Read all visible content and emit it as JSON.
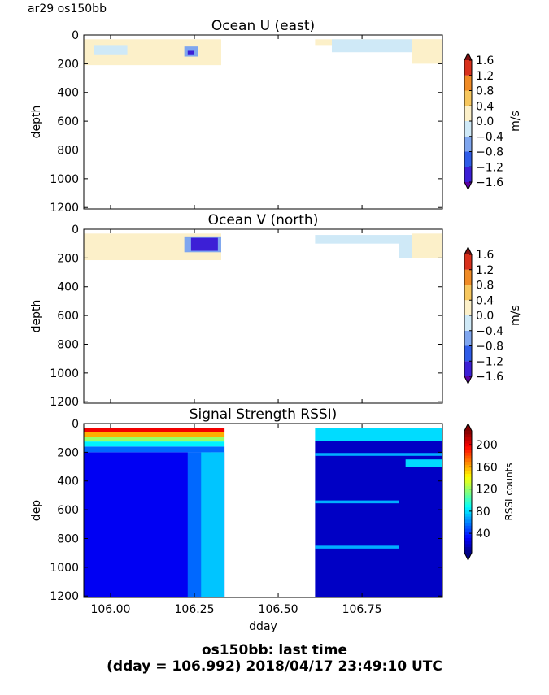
{
  "header": {
    "corner_label": "ar29 os150bb"
  },
  "footer": {
    "line1": "os150bb: last time",
    "line2": "(dday = 106.992) 2018/04/17 23:49:10 UTC"
  },
  "chart_data": [
    {
      "type": "heatmap",
      "title": "Ocean U (east)",
      "ylabel": "depth",
      "xlabel": "",
      "xlim": [
        105.92,
        106.99
      ],
      "ylim": [
        1210,
        0
      ],
      "y_ticks": [
        "0",
        "200",
        "400",
        "600",
        "800",
        "1000",
        "1200"
      ],
      "x_ticks": [],
      "colorbar": {
        "label": "m/s",
        "range": [
          -1.6,
          1.6
        ],
        "ticks": [
          "1.6",
          "1.2",
          "0.8",
          "0.4",
          "0.0",
          "−0.4",
          "−0.8",
          "−1.2",
          "−1.6"
        ]
      },
      "regions": [
        {
          "x0": 105.92,
          "x1": 106.33,
          "y0": 30,
          "y1": 210,
          "value": 0.1
        },
        {
          "x0": 106.61,
          "x1": 106.99,
          "y0": 30,
          "y1": 70,
          "value": 0.1
        },
        {
          "x0": 106.9,
          "x1": 106.99,
          "y0": 30,
          "y1": 200,
          "value": 0.1
        },
        {
          "x0": 105.95,
          "x1": 106.05,
          "y0": 70,
          "y1": 140,
          "value": -0.2
        },
        {
          "x0": 106.66,
          "x1": 106.9,
          "y0": 30,
          "y1": 120,
          "value": -0.2
        },
        {
          "x0": 106.22,
          "x1": 106.26,
          "y0": 80,
          "y1": 150,
          "value": -0.6
        },
        {
          "x0": 106.23,
          "x1": 106.25,
          "y0": 110,
          "y1": 140,
          "value": -1.4
        }
      ]
    },
    {
      "type": "heatmap",
      "title": "Ocean V (north)",
      "ylabel": "depth",
      "xlabel": "",
      "xlim": [
        105.92,
        106.99
      ],
      "ylim": [
        1210,
        0
      ],
      "y_ticks": [
        "0",
        "200",
        "400",
        "600",
        "800",
        "1000",
        "1200"
      ],
      "x_ticks": [],
      "colorbar": {
        "label": "m/s",
        "range": [
          -1.6,
          1.6
        ],
        "ticks": [
          "1.6",
          "1.2",
          "0.8",
          "0.4",
          "0.0",
          "−0.4",
          "−0.8",
          "−1.2",
          "−1.6"
        ]
      },
      "regions": [
        {
          "x0": 105.92,
          "x1": 106.33,
          "y0": 30,
          "y1": 215,
          "value": 0.1
        },
        {
          "x0": 106.9,
          "x1": 106.99,
          "y0": 30,
          "y1": 200,
          "value": 0.1
        },
        {
          "x0": 106.61,
          "x1": 106.9,
          "y0": 40,
          "y1": 100,
          "value": -0.2
        },
        {
          "x0": 106.86,
          "x1": 106.9,
          "y0": 40,
          "y1": 200,
          "value": -0.2
        },
        {
          "x0": 106.22,
          "x1": 106.33,
          "y0": 50,
          "y1": 160,
          "value": -0.6
        },
        {
          "x0": 106.24,
          "x1": 106.32,
          "y0": 60,
          "y1": 150,
          "value": -1.5
        }
      ]
    },
    {
      "type": "heatmap",
      "title": "Signal Strength RSSI)",
      "ylabel": "dep",
      "xlabel": "dday",
      "xlim": [
        105.92,
        106.99
      ],
      "ylim": [
        1210,
        0
      ],
      "y_ticks": [
        "0",
        "200",
        "400",
        "600",
        "800",
        "1000",
        "1200"
      ],
      "x_ticks": [
        "106.00",
        "106.25",
        "106.50",
        "106.75"
      ],
      "x_tick_values": [
        106.0,
        106.25,
        106.5,
        106.75
      ],
      "colorbar": {
        "label": "RSSI counts",
        "range": [
          5,
          225
        ],
        "ticks": [
          "200",
          "160",
          "120",
          "80",
          "40"
        ],
        "tick_values": [
          200,
          160,
          120,
          80,
          40
        ]
      },
      "regions": [
        {
          "x0": 105.92,
          "x1": 106.34,
          "y0": 200,
          "y1": 1210,
          "value": 30
        },
        {
          "x0": 106.23,
          "x1": 106.3,
          "y0": 200,
          "y1": 1210,
          "value": 55
        },
        {
          "x0": 106.27,
          "x1": 106.34,
          "y0": 200,
          "y1": 1210,
          "value": 75
        },
        {
          "x0": 105.92,
          "x1": 106.34,
          "y0": 160,
          "y1": 200,
          "value": 55
        },
        {
          "x0": 105.92,
          "x1": 106.34,
          "y0": 125,
          "y1": 160,
          "value": 85
        },
        {
          "x0": 105.92,
          "x1": 106.34,
          "y0": 95,
          "y1": 125,
          "value": 120
        },
        {
          "x0": 105.92,
          "x1": 106.34,
          "y0": 60,
          "y1": 95,
          "value": 160
        },
        {
          "x0": 105.92,
          "x1": 106.34,
          "y0": 30,
          "y1": 60,
          "value": 200
        },
        {
          "x0": 106.61,
          "x1": 106.99,
          "y0": 120,
          "y1": 1210,
          "value": 20
        },
        {
          "x0": 106.61,
          "x1": 106.99,
          "y0": 30,
          "y1": 120,
          "value": 80
        },
        {
          "x0": 106.61,
          "x1": 106.99,
          "y0": 205,
          "y1": 225,
          "value": 70
        },
        {
          "x0": 106.61,
          "x1": 106.86,
          "y0": 535,
          "y1": 555,
          "value": 70
        },
        {
          "x0": 106.61,
          "x1": 106.86,
          "y0": 850,
          "y1": 870,
          "value": 70
        },
        {
          "x0": 106.88,
          "x1": 106.99,
          "y0": 250,
          "y1": 300,
          "value": 80
        }
      ]
    }
  ]
}
